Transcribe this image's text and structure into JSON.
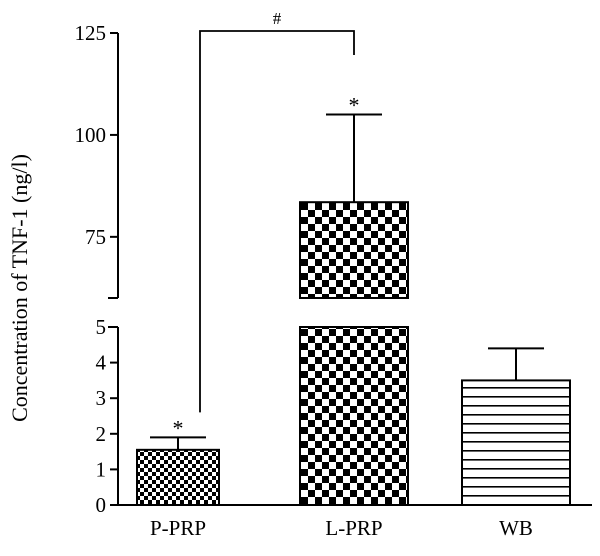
{
  "chart_data": {
    "type": "bar",
    "ylabel": "Concentration of TNF-1 (ng/l)",
    "categories": [
      "P-PRP",
      "L-PRP",
      "WB"
    ],
    "values": [
      1.55,
      83.5,
      3.5
    ],
    "errors": [
      0.35,
      21.5,
      0.9
    ],
    "patterns": [
      "small-checker",
      "large-checker",
      "horizontal-stripes"
    ],
    "significance": [
      "*",
      "*",
      ""
    ],
    "comparison": {
      "from": "P-PRP",
      "to": "L-PRP",
      "label": "#"
    },
    "axis_break": true,
    "y_segments": [
      {
        "range": [
          0,
          5
        ],
        "ticks": [
          "0",
          "1",
          "2",
          "3",
          "4",
          "5"
        ]
      },
      {
        "range": [
          60,
          125
        ],
        "ticks": [
          "75",
          "100",
          "125"
        ]
      }
    ],
    "grid": false
  },
  "colors": {
    "ink": "#000000",
    "background": "#ffffff"
  }
}
